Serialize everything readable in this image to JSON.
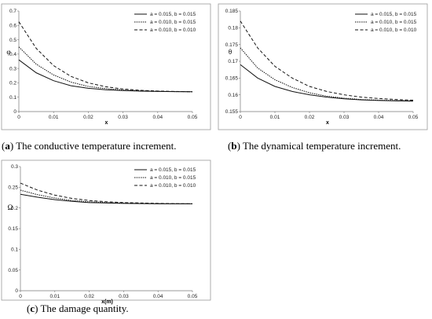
{
  "figures": [
    {
      "caption_letter": "a",
      "caption_text": "The conductive temperature increment.",
      "chart_data": {
        "type": "line",
        "xlabel": "x",
        "ylabel": "φ",
        "xlim": [
          0,
          0.05
        ],
        "ylim": [
          0,
          0.7
        ],
        "xticks": [
          "0",
          "0.01",
          "0.02",
          "0.03",
          "0.04",
          "0.05"
        ],
        "yticks": [
          "0",
          "0.1",
          "0.2",
          "0.3",
          "0.4",
          "0.5",
          "0.6",
          "0.7"
        ],
        "x": [
          0,
          0.005,
          0.01,
          0.015,
          0.02,
          0.025,
          0.03,
          0.035,
          0.04,
          0.045,
          0.05
        ],
        "series": [
          {
            "name": "a = 0.015, b = 0.015",
            "style": "solid",
            "values": [
              0.36,
              0.27,
              0.215,
              0.18,
              0.162,
              0.152,
              0.146,
              0.142,
              0.14,
              0.139,
              0.138
            ]
          },
          {
            "name": "a = 0.010, b = 0.015",
            "style": "dotted",
            "values": [
              0.45,
              0.33,
              0.255,
              0.205,
              0.175,
              0.16,
              0.15,
              0.145,
              0.141,
              0.139,
              0.138
            ]
          },
          {
            "name": "a = 0.010, b = 0.010",
            "style": "dashed",
            "values": [
              0.625,
              0.44,
              0.32,
              0.245,
              0.2,
              0.173,
              0.157,
              0.148,
              0.143,
              0.14,
              0.138
            ]
          }
        ]
      }
    },
    {
      "caption_letter": "b",
      "caption_text": "The dynamical temperature increment.",
      "chart_data": {
        "type": "line",
        "xlabel": "x",
        "ylabel": "θ",
        "xlim": [
          0,
          0.05
        ],
        "ylim": [
          0.155,
          0.185
        ],
        "xticks": [
          "0",
          "0.01",
          "0.02",
          "0.03",
          "0.04",
          "0.05"
        ],
        "yticks": [
          "0.155",
          "0.16",
          "0.165",
          "0.17",
          "0.175",
          "0.18",
          "0.185"
        ],
        "x": [
          0,
          0.005,
          0.01,
          0.015,
          0.02,
          0.025,
          0.03,
          0.035,
          0.04,
          0.045,
          0.05
        ],
        "series": [
          {
            "name": "a = 0.015, b = 0.015",
            "style": "solid",
            "values": [
              0.169,
              0.165,
              0.1625,
              0.161,
              0.16,
              0.1593,
              0.1588,
              0.1585,
              0.1583,
              0.1582,
              0.1581
            ]
          },
          {
            "name": "a = 0.010, b = 0.015",
            "style": "dotted",
            "values": [
              0.174,
              0.168,
              0.1645,
              0.1622,
              0.1606,
              0.1596,
              0.159,
              0.1586,
              0.1584,
              0.1583,
              0.1582
            ]
          },
          {
            "name": "a = 0.010, b = 0.010",
            "style": "dashed",
            "values": [
              0.182,
              0.174,
              0.1685,
              0.165,
              0.1625,
              0.161,
              0.16,
              0.1593,
              0.1589,
              0.1586,
              0.1584
            ]
          }
        ]
      }
    },
    {
      "caption_letter": "c",
      "caption_text": "The damage quantity.",
      "chart_data": {
        "type": "line",
        "xlabel": "x(m)",
        "ylabel": "Ω",
        "xlim": [
          0,
          0.05
        ],
        "ylim": [
          0,
          0.3
        ],
        "xticks": [
          "0",
          "0.01",
          "0.02",
          "0.03",
          "0.04",
          "0.05"
        ],
        "yticks": [
          "0",
          "0.05",
          "0.1",
          "0.15",
          "0.2",
          "0.25",
          "0.3"
        ],
        "x": [
          0,
          0.005,
          0.01,
          0.015,
          0.02,
          0.025,
          0.03,
          0.035,
          0.04,
          0.045,
          0.05
        ],
        "series": [
          {
            "name": "a = 0.015, b = 0.015",
            "style": "solid",
            "values": [
              0.233,
              0.226,
              0.22,
              0.216,
              0.213,
              0.212,
              0.211,
              0.2105,
              0.21,
              0.21,
              0.21
            ]
          },
          {
            "name": "a = 0.010, b = 0.015",
            "style": "dotted",
            "values": [
              0.243,
              0.232,
              0.224,
              0.218,
              0.215,
              0.213,
              0.2115,
              0.211,
              0.2105,
              0.21,
              0.21
            ]
          },
          {
            "name": "a = 0.010, b = 0.010",
            "style": "dashed",
            "values": [
              0.26,
              0.243,
              0.231,
              0.223,
              0.218,
              0.215,
              0.213,
              0.212,
              0.211,
              0.2105,
              0.21
            ]
          }
        ]
      }
    }
  ]
}
